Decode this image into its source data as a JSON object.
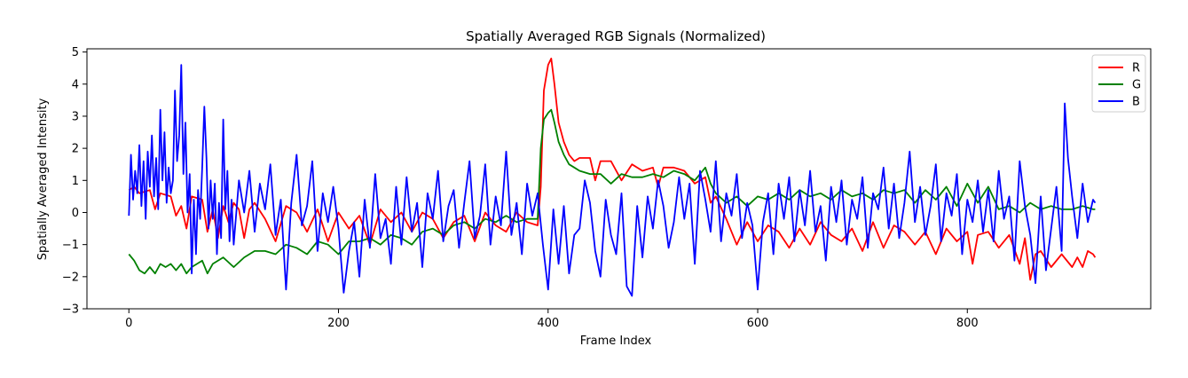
{
  "chart_data": {
    "type": "line",
    "title": "Spatially Averaged RGB Signals (Normalized)",
    "xlabel": "Frame Index",
    "ylabel": "Spatially Averaged Intensity",
    "xlim": [
      -40,
      975
    ],
    "ylim": [
      -3,
      5.1
    ],
    "xticks": [
      0,
      200,
      400,
      600,
      800
    ],
    "yticks": [
      -3,
      -2,
      -1,
      0,
      1,
      2,
      3,
      4,
      5
    ],
    "grid": false,
    "legend": "top-right",
    "series": [
      {
        "name": "R",
        "color": "#ff0000",
        "x": [
          0,
          5,
          10,
          20,
          25,
          30,
          40,
          45,
          50,
          55,
          60,
          70,
          75,
          80,
          85,
          90,
          95,
          100,
          105,
          110,
          115,
          120,
          130,
          140,
          150,
          160,
          170,
          180,
          190,
          200,
          210,
          220,
          230,
          240,
          250,
          260,
          270,
          280,
          290,
          300,
          310,
          320,
          330,
          340,
          350,
          360,
          370,
          380,
          390,
          393,
          396,
          400,
          403,
          406,
          410,
          415,
          420,
          425,
          430,
          440,
          445,
          450,
          460,
          470,
          480,
          490,
          500,
          505,
          510,
          520,
          530,
          540,
          550,
          555,
          560,
          570,
          580,
          590,
          600,
          610,
          620,
          630,
          640,
          650,
          660,
          670,
          680,
          690,
          700,
          710,
          720,
          730,
          740,
          750,
          760,
          770,
          780,
          790,
          800,
          805,
          810,
          820,
          830,
          840,
          850,
          855,
          860,
          865,
          870,
          880,
          890,
          900,
          905,
          910,
          915,
          920,
          922
        ],
        "values": [
          0.7,
          0.8,
          0.6,
          0.7,
          0.1,
          0.6,
          0.5,
          -0.1,
          0.2,
          -0.5,
          0.5,
          0.4,
          -0.6,
          0.1,
          -0.8,
          0.2,
          -0.3,
          0.3,
          0.1,
          -0.8,
          0.1,
          0.3,
          -0.2,
          -0.9,
          0.2,
          0.0,
          -0.6,
          0.1,
          -0.9,
          0.0,
          -0.5,
          -0.1,
          -1.0,
          0.1,
          -0.3,
          0.0,
          -0.6,
          0.0,
          -0.2,
          -0.8,
          -0.3,
          -0.1,
          -0.9,
          0.0,
          -0.4,
          -0.6,
          0.0,
          -0.3,
          -0.4,
          0.8,
          3.8,
          4.6,
          4.8,
          4.0,
          2.8,
          2.2,
          1.8,
          1.6,
          1.7,
          1.7,
          1.0,
          1.6,
          1.6,
          1.0,
          1.5,
          1.3,
          1.4,
          0.8,
          1.4,
          1.4,
          1.3,
          0.9,
          1.1,
          0.3,
          0.5,
          -0.2,
          -1.0,
          -0.3,
          -0.9,
          -0.4,
          -0.6,
          -1.1,
          -0.5,
          -1.0,
          -0.3,
          -0.7,
          -0.9,
          -0.5,
          -1.2,
          -0.3,
          -1.1,
          -0.4,
          -0.6,
          -1.0,
          -0.6,
          -1.3,
          -0.5,
          -0.9,
          -0.6,
          -1.6,
          -0.7,
          -0.6,
          -1.1,
          -0.7,
          -1.6,
          -0.8,
          -2.1,
          -1.3,
          -1.2,
          -1.7,
          -1.3,
          -1.7,
          -1.4,
          -1.7,
          -1.2,
          -1.3,
          -1.4
        ]
      },
      {
        "name": "G",
        "color": "#008000",
        "x": [
          0,
          5,
          10,
          15,
          20,
          25,
          30,
          35,
          40,
          45,
          50,
          55,
          60,
          65,
          70,
          75,
          80,
          90,
          100,
          110,
          120,
          130,
          140,
          150,
          160,
          170,
          180,
          190,
          200,
          210,
          220,
          230,
          240,
          250,
          260,
          270,
          280,
          290,
          300,
          310,
          320,
          330,
          340,
          350,
          360,
          370,
          380,
          390,
          393,
          396,
          400,
          403,
          406,
          410,
          415,
          420,
          425,
          430,
          440,
          445,
          450,
          460,
          470,
          480,
          490,
          500,
          510,
          520,
          530,
          540,
          550,
          555,
          560,
          570,
          580,
          590,
          600,
          610,
          620,
          630,
          640,
          650,
          660,
          670,
          680,
          690,
          700,
          710,
          720,
          730,
          740,
          750,
          760,
          770,
          780,
          790,
          800,
          810,
          820,
          830,
          840,
          850,
          860,
          870,
          880,
          890,
          900,
          910,
          920,
          922
        ],
        "values": [
          -1.3,
          -1.5,
          -1.8,
          -1.9,
          -1.7,
          -1.9,
          -1.6,
          -1.7,
          -1.6,
          -1.8,
          -1.6,
          -1.9,
          -1.7,
          -1.6,
          -1.5,
          -1.9,
          -1.6,
          -1.4,
          -1.7,
          -1.4,
          -1.2,
          -1.2,
          -1.3,
          -1.0,
          -1.1,
          -1.3,
          -0.9,
          -1.0,
          -1.3,
          -0.9,
          -0.9,
          -0.8,
          -1.0,
          -0.7,
          -0.8,
          -1.0,
          -0.6,
          -0.5,
          -0.7,
          -0.4,
          -0.3,
          -0.5,
          -0.2,
          -0.3,
          -0.1,
          -0.3,
          -0.2,
          -0.2,
          2.0,
          2.9,
          3.1,
          3.2,
          2.8,
          2.2,
          1.8,
          1.5,
          1.4,
          1.3,
          1.2,
          1.2,
          1.2,
          0.9,
          1.2,
          1.1,
          1.1,
          1.2,
          1.1,
          1.3,
          1.2,
          1.0,
          1.4,
          0.9,
          0.6,
          0.3,
          0.5,
          0.2,
          0.5,
          0.4,
          0.6,
          0.4,
          0.7,
          0.5,
          0.6,
          0.4,
          0.7,
          0.5,
          0.6,
          0.4,
          0.7,
          0.6,
          0.7,
          0.3,
          0.7,
          0.4,
          0.8,
          0.2,
          0.9,
          0.3,
          0.8,
          0.1,
          0.2,
          0.0,
          0.3,
          0.1,
          0.2,
          0.1,
          0.1,
          0.2,
          0.1,
          0.1
        ]
      },
      {
        "name": "B",
        "color": "#0000ff",
        "x": [
          0,
          2,
          4,
          6,
          8,
          10,
          12,
          14,
          16,
          18,
          20,
          22,
          24,
          26,
          28,
          30,
          32,
          34,
          36,
          38,
          40,
          42,
          44,
          46,
          48,
          50,
          52,
          54,
          56,
          58,
          60,
          62,
          64,
          66,
          68,
          70,
          72,
          74,
          76,
          78,
          80,
          82,
          84,
          86,
          88,
          90,
          92,
          94,
          96,
          98,
          100,
          105,
          110,
          115,
          120,
          125,
          130,
          135,
          140,
          145,
          150,
          155,
          160,
          165,
          170,
          175,
          180,
          185,
          190,
          195,
          200,
          205,
          210,
          215,
          220,
          225,
          230,
          235,
          240,
          245,
          250,
          255,
          260,
          265,
          270,
          275,
          280,
          285,
          290,
          295,
          300,
          305,
          310,
          315,
          320,
          325,
          330,
          335,
          340,
          345,
          350,
          355,
          360,
          365,
          370,
          375,
          380,
          385,
          390,
          395,
          400,
          405,
          410,
          415,
          420,
          425,
          430,
          435,
          440,
          445,
          450,
          455,
          460,
          465,
          470,
          475,
          480,
          485,
          490,
          495,
          500,
          505,
          510,
          515,
          520,
          525,
          530,
          535,
          540,
          545,
          550,
          555,
          560,
          565,
          570,
          575,
          580,
          585,
          590,
          595,
          600,
          605,
          610,
          615,
          620,
          625,
          630,
          635,
          640,
          645,
          650,
          655,
          660,
          665,
          670,
          675,
          680,
          685,
          690,
          695,
          700,
          705,
          710,
          715,
          720,
          725,
          730,
          735,
          740,
          745,
          750,
          755,
          760,
          765,
          770,
          775,
          780,
          785,
          790,
          795,
          800,
          805,
          810,
          815,
          820,
          825,
          830,
          835,
          840,
          845,
          850,
          855,
          860,
          865,
          870,
          875,
          880,
          885,
          890,
          893,
          896,
          900,
          905,
          910,
          915,
          920,
          922
        ],
        "values": [
          -0.1,
          1.8,
          0.4,
          1.3,
          0.6,
          2.1,
          0.2,
          1.6,
          -0.2,
          1.9,
          0.8,
          2.4,
          0.5,
          1.7,
          0.1,
          3.2,
          1.0,
          2.5,
          0.3,
          1.4,
          0.6,
          1.0,
          3.8,
          1.6,
          2.4,
          4.6,
          1.2,
          2.8,
          0.0,
          1.2,
          -1.9,
          0.4,
          -1.3,
          0.7,
          -0.2,
          1.4,
          3.3,
          1.7,
          -0.5,
          1.0,
          -0.2,
          0.9,
          -1.3,
          0.3,
          -0.8,
          2.9,
          0.1,
          1.3,
          -0.9,
          0.4,
          -1.0,
          1.0,
          0.0,
          1.3,
          -0.6,
          0.9,
          0.1,
          1.5,
          -0.7,
          0.4,
          -2.4,
          0.3,
          1.8,
          -0.4,
          0.2,
          1.6,
          -1.2,
          0.6,
          -0.3,
          0.8,
          -0.5,
          -2.5,
          -1.2,
          -0.3,
          -2.0,
          0.4,
          -1.1,
          1.2,
          -0.8,
          -0.2,
          -1.6,
          0.8,
          -1.0,
          1.1,
          -0.6,
          0.3,
          -1.7,
          0.6,
          -0.2,
          1.3,
          -0.9,
          0.2,
          0.7,
          -1.1,
          0.3,
          1.6,
          -0.8,
          -0.1,
          1.5,
          -1.0,
          0.5,
          -0.4,
          1.9,
          -0.7,
          0.3,
          -1.3,
          0.9,
          -0.1,
          0.6,
          -1.0,
          -2.4,
          0.1,
          -1.6,
          0.2,
          -1.9,
          -0.7,
          -0.5,
          1.0,
          0.3,
          -1.2,
          -2.0,
          0.4,
          -0.7,
          -1.3,
          0.6,
          -2.3,
          -2.6,
          0.2,
          -1.4,
          0.5,
          -0.5,
          1.0,
          0.2,
          -1.1,
          -0.3,
          1.1,
          -0.2,
          0.9,
          -1.6,
          1.3,
          0.4,
          -0.6,
          1.6,
          -0.9,
          0.6,
          -0.1,
          1.2,
          -0.8,
          0.3,
          -0.4,
          -2.4,
          -0.3,
          0.6,
          -1.3,
          0.9,
          -0.2,
          1.1,
          -0.9,
          0.7,
          -0.4,
          1.3,
          -0.6,
          0.2,
          -1.5,
          0.8,
          -0.3,
          1.0,
          -1.0,
          0.4,
          -0.2,
          1.1,
          -1.1,
          0.6,
          0.1,
          1.4,
          -0.5,
          0.9,
          -0.8,
          0.3,
          1.9,
          -0.3,
          0.8,
          -0.7,
          0.2,
          1.5,
          -0.9,
          0.6,
          -0.1,
          1.2,
          -1.3,
          0.4,
          -0.3,
          1.0,
          -0.6,
          0.7,
          -0.9,
          1.3,
          -0.2,
          0.5,
          -1.5,
          1.6,
          0.2,
          -0.7,
          -2.2,
          0.5,
          -1.8,
          -0.5,
          0.8,
          -1.2,
          3.4,
          1.7,
          0.5,
          -0.8,
          0.9,
          -0.3,
          0.4,
          0.3
        ]
      }
    ]
  }
}
